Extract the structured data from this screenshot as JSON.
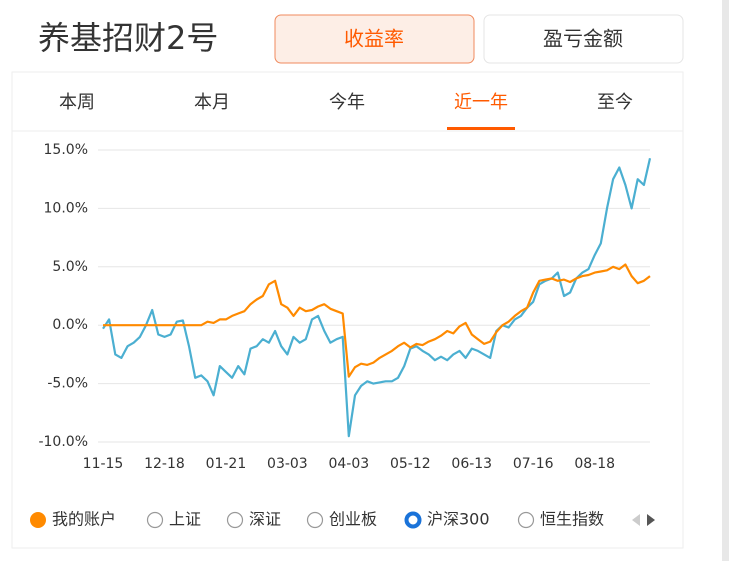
{
  "ui": {
    "title": "养基招财2号",
    "buttons": [
      "收益率",
      "盈亏金额"
    ],
    "active_button": 0,
    "tabs": [
      "本周",
      "本月",
      "今年",
      "近一年",
      "至今"
    ],
    "active_tab": 3,
    "index_options": [
      "上证",
      "深证",
      "创业板",
      "恒生指数"
    ]
  },
  "chart_data": {
    "type": "line",
    "categories": [
      "11-15",
      null,
      null,
      null,
      null,
      null,
      null,
      null,
      null,
      null,
      "12-18",
      null,
      null,
      null,
      null,
      null,
      null,
      null,
      null,
      null,
      "01-21",
      null,
      null,
      null,
      null,
      null,
      null,
      null,
      null,
      null,
      "03-03",
      null,
      null,
      null,
      null,
      null,
      null,
      null,
      null,
      null,
      "04-03",
      null,
      null,
      null,
      null,
      null,
      null,
      null,
      null,
      null,
      "05-12",
      null,
      null,
      null,
      null,
      null,
      null,
      null,
      null,
      null,
      "06-13",
      null,
      null,
      null,
      null,
      null,
      null,
      null,
      null,
      null,
      "07-16",
      null,
      null,
      null,
      null,
      null,
      null,
      null,
      null,
      null,
      "08-18",
      null,
      null,
      null,
      null,
      null,
      null,
      null,
      null,
      null
    ],
    "series": [
      {
        "name": "我的账户",
        "color": "#ff8a00",
        "values": [
          0,
          0,
          0,
          0,
          0,
          0,
          0,
          0,
          0,
          0,
          0,
          0,
          0,
          0,
          0,
          0,
          0,
          0.3,
          0.2,
          0.5,
          0.5,
          0.8,
          1,
          1.2,
          1.8,
          2.2,
          2.5,
          3.5,
          3.8,
          1.8,
          1.5,
          0.8,
          1.5,
          1.2,
          1.3,
          1.6,
          1.8,
          1.4,
          1.2,
          1,
          -4.4,
          -3.6,
          -3.3,
          -3.4,
          -3.2,
          -2.8,
          -2.5,
          -2.2,
          -1.8,
          -1.5,
          -1.9,
          -1.6,
          -1.7,
          -1.4,
          -1.2,
          -0.9,
          -0.5,
          -0.7,
          -0.1,
          0.2,
          -0.8,
          -1.2,
          -1.6,
          -1.4,
          -0.6,
          0,
          0.3,
          0.8,
          1.2,
          1.5,
          2.8,
          3.8,
          3.9,
          4,
          3.8,
          3.9,
          3.7,
          4,
          4.2,
          4.3,
          4.5,
          4.6,
          4.7,
          5,
          4.8,
          5.2,
          4.2,
          3.6,
          3.8,
          4.2
        ]
      },
      {
        "name": "沪深300",
        "color": "#4bafd1",
        "values": [
          -0.3,
          0.5,
          -2.5,
          -2.8,
          -1.8,
          -1.5,
          -1,
          0,
          1.3,
          -0.8,
          -1,
          -0.8,
          0.3,
          0.4,
          -1.8,
          -4.5,
          -4.3,
          -4.8,
          -6,
          -3.5,
          -4,
          -4.5,
          -3.5,
          -4.2,
          -2,
          -1.8,
          -1.2,
          -1.5,
          -0.5,
          -1.8,
          -2.5,
          -1,
          -1.5,
          -1.2,
          0.5,
          0.8,
          -0.5,
          -1.5,
          -1.2,
          -1,
          -9.5,
          -6,
          -5.2,
          -4.8,
          -5,
          -4.9,
          -4.8,
          -4.8,
          -4.5,
          -3.5,
          -2,
          -1.8,
          -2.2,
          -2.5,
          -3,
          -2.7,
          -3,
          -2.5,
          -2.2,
          -2.8,
          -2,
          -2.2,
          -2.5,
          -2.8,
          -0.5,
          0,
          -0.2,
          0.5,
          0.8,
          1.5,
          2,
          3.5,
          3.8,
          4,
          4.5,
          2.5,
          2.8,
          4,
          4.5,
          4.8,
          6,
          7,
          10,
          12.5,
          13.5,
          12,
          10,
          12.5,
          12,
          14.3
        ]
      }
    ],
    "ylim": [
      -10,
      15
    ],
    "yticks": [
      {
        "value": 15,
        "label": "15.0%"
      },
      {
        "value": 10,
        "label": "10.0%"
      },
      {
        "value": 5,
        "label": "5.0%"
      },
      {
        "value": 0,
        "label": "0.0%"
      },
      {
        "value": -5,
        "label": "-5.0%"
      },
      {
        "value": -10,
        "label": "-10.0%"
      }
    ],
    "grid": true
  }
}
